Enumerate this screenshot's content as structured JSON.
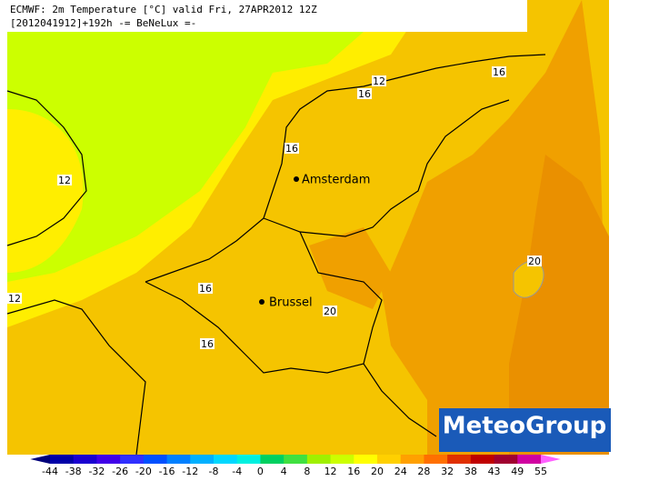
{
  "header": {
    "line1": "ECMWF: 2m Temperature [°C] valid Fri, 27APR2012 12Z",
    "line2": "[2012041912]+192h -= BeNeLux =-"
  },
  "cities": [
    {
      "label": "Amsterdam"
    },
    {
      "label": "Brussel"
    }
  ],
  "contour_labels": [
    12,
    16,
    16,
    16,
    12,
    20,
    12,
    16,
    20,
    16
  ],
  "legend": {
    "ticks": [
      -44,
      -38,
      -32,
      -26,
      -20,
      -16,
      -12,
      -8,
      -4,
      0,
      4,
      8,
      12,
      16,
      20,
      24,
      28,
      32,
      38,
      43,
      49,
      55
    ],
    "colors": [
      "#00007a",
      "#0000a8",
      "#1a00d0",
      "#4000e8",
      "#3030ff",
      "#0050ff",
      "#0080ff",
      "#00b0ff",
      "#00d8ff",
      "#00f0e0",
      "#00d060",
      "#40e040",
      "#a0f000",
      "#ccff00",
      "#ffff00",
      "#ffd000",
      "#ffa000",
      "#ff7000",
      "#e03000",
      "#c00000",
      "#a00030",
      "#d000a0",
      "#ff60ff"
    ]
  },
  "logo": "MeteoGroup"
}
